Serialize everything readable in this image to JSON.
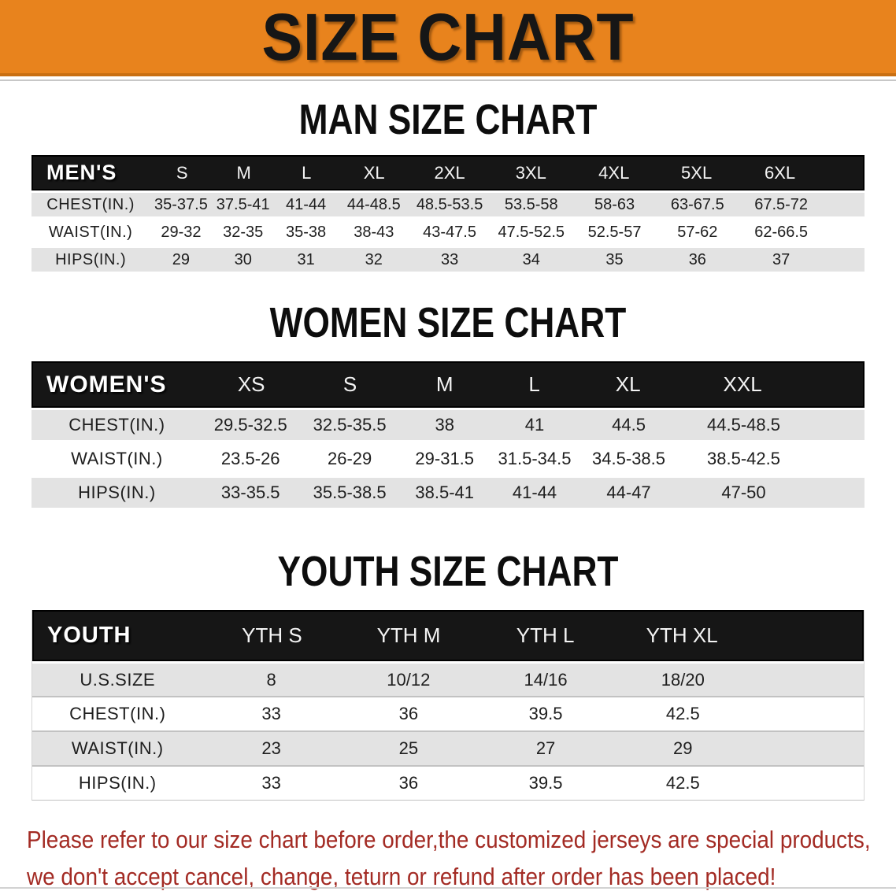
{
  "banner": {
    "title": "SIZE CHART"
  },
  "colors": {
    "banner_bg": "#E8831D",
    "table_header_bg": "#161616",
    "row_alt_bg": "#e3e3e3",
    "footer_text": "#A32B24"
  },
  "sections": [
    {
      "heading": "MAN SIZE CHART",
      "table": {
        "label": "MEN'S",
        "columns": [
          "S",
          "M",
          "L",
          "XL",
          "2XL",
          "3XL",
          "4XL",
          "5XL",
          "6XL"
        ],
        "rows": [
          {
            "label": "CHEST(IN.)",
            "values": [
              "35-37.5",
              "37.5-41",
              "41-44",
              "44-48.5",
              "48.5-53.5",
              "53.5-58",
              "58-63",
              "63-67.5",
              "67.5-72"
            ]
          },
          {
            "label": "WAIST(IN.)",
            "values": [
              "29-32",
              "32-35",
              "35-38",
              "38-43",
              "43-47.5",
              "47.5-52.5",
              "52.5-57",
              "57-62",
              "62-66.5"
            ]
          },
          {
            "label": "HIPS(IN.)",
            "values": [
              "29",
              "30",
              "31",
              "32",
              "33",
              "34",
              "35",
              "36",
              "37"
            ]
          }
        ]
      }
    },
    {
      "heading": "WOMEN SIZE CHART",
      "table": {
        "label": "WOMEN'S",
        "columns": [
          "XS",
          "S",
          "M",
          "L",
          "XL",
          "XXL"
        ],
        "rows": [
          {
            "label": "CHEST(IN.)",
            "values": [
              "29.5-32.5",
              "32.5-35.5",
              "38",
              "41",
              "44.5",
              "44.5-48.5"
            ]
          },
          {
            "label": "WAIST(IN.)",
            "values": [
              "23.5-26",
              "26-29",
              "29-31.5",
              "31.5-34.5",
              "34.5-38.5",
              "38.5-42.5"
            ]
          },
          {
            "label": "HIPS(IN.)",
            "values": [
              "33-35.5",
              "35.5-38.5",
              "38.5-41",
              "41-44",
              "44-47",
              "47-50"
            ]
          }
        ]
      }
    },
    {
      "heading": "YOUTH SIZE CHART",
      "table": {
        "label": "YOUTH",
        "columns": [
          "YTH S",
          "YTH M",
          "YTH L",
          "YTH XL"
        ],
        "rows": [
          {
            "label": "U.S.SIZE",
            "values": [
              "8",
              "10/12",
              "14/16",
              "18/20"
            ]
          },
          {
            "label": "CHEST(IN.)",
            "values": [
              "33",
              "36",
              "39.5",
              "42.5"
            ]
          },
          {
            "label": "WAIST(IN.)",
            "values": [
              "23",
              "25",
              "27",
              "29"
            ]
          },
          {
            "label": "HIPS(IN.)",
            "values": [
              "33",
              "36",
              "39.5",
              "42.5"
            ]
          }
        ]
      }
    }
  ],
  "footer": {
    "line1": "Please refer to our size chart before order,the customized jerseys are special products,",
    "line2": "we don't accept cancel, change, teturn or refund after order has been placed!"
  }
}
